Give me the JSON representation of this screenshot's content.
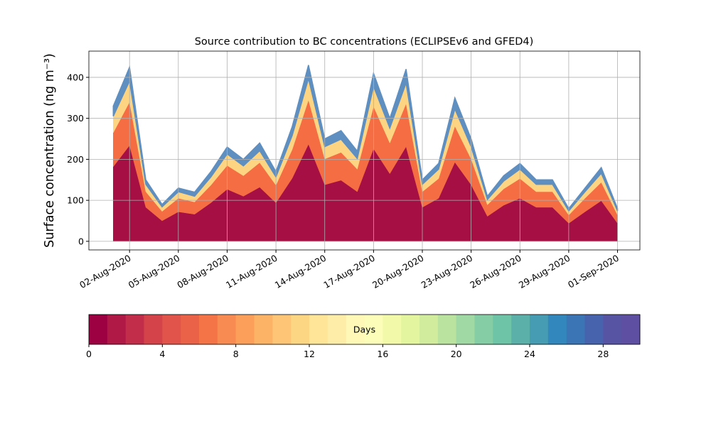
{
  "chart_data": {
    "type": "stacked_area",
    "title": "Source contribution to BC concentrations (ECLIPSEv6 and GFED4)",
    "y_label": "Surface concentration (ng m⁻³)",
    "x": [
      "2020-08-01",
      "2020-08-02",
      "2020-08-03",
      "2020-08-04",
      "2020-08-05",
      "2020-08-06",
      "2020-08-07",
      "2020-08-08",
      "2020-08-09",
      "2020-08-10",
      "2020-08-11",
      "2020-08-12",
      "2020-08-13",
      "2020-08-14",
      "2020-08-15",
      "2020-08-16",
      "2020-08-17",
      "2020-08-18",
      "2020-08-19",
      "2020-08-20",
      "2020-08-21",
      "2020-08-22",
      "2020-08-23",
      "2020-08-24",
      "2020-08-25",
      "2020-08-26",
      "2020-08-27",
      "2020-08-28",
      "2020-08-29",
      "2020-08-30",
      "2020-08-31",
      "2020-09-01"
    ],
    "series": [
      {
        "color": "#a50f43",
        "values": [
          182,
          234,
          83,
          50,
          72,
          66,
          94,
          127,
          110,
          132,
          94,
          154,
          237,
          138,
          149,
          121,
          226,
          165,
          231,
          83,
          105,
          193,
          138,
          61,
          88,
          105,
          83,
          83,
          44,
          72,
          99,
          44
        ]
      },
      {
        "color": "#f46d43",
        "values": [
          83,
          106,
          38,
          23,
          33,
          30,
          43,
          58,
          50,
          60,
          43,
          70,
          108,
          63,
          68,
          55,
          103,
          75,
          105,
          38,
          48,
          88,
          63,
          28,
          40,
          48,
          38,
          38,
          20,
          33,
          45,
          20
        ]
      },
      {
        "color": "#fdd582",
        "values": [
          40,
          51,
          18,
          11,
          16,
          14,
          20,
          28,
          24,
          29,
          20,
          34,
          52,
          30,
          32,
          26,
          49,
          36,
          50,
          18,
          23,
          42,
          30,
          13,
          19,
          23,
          18,
          18,
          10,
          16,
          22,
          10
        ]
      },
      {
        "color": "#5e8fc0",
        "values": [
          25,
          34,
          11,
          6,
          9,
          10,
          13,
          17,
          16,
          19,
          13,
          22,
          33,
          19,
          21,
          18,
          32,
          24,
          34,
          11,
          14,
          27,
          19,
          8,
          13,
          14,
          11,
          11,
          6,
          9,
          14,
          6
        ]
      }
    ],
    "xlim": [
      "2020-07-30T12:00",
      "2020-09-02T09:00"
    ],
    "xticks": [
      {
        "value": "2020-08-02",
        "label": "02-Aug-2020"
      },
      {
        "value": "2020-08-05",
        "label": "05-Aug-2020"
      },
      {
        "value": "2020-08-08",
        "label": "08-Aug-2020"
      },
      {
        "value": "2020-08-11",
        "label": "11-Aug-2020"
      },
      {
        "value": "2020-08-14",
        "label": "14-Aug-2020"
      },
      {
        "value": "2020-08-17",
        "label": "17-Aug-2020"
      },
      {
        "value": "2020-08-20",
        "label": "20-Aug-2020"
      },
      {
        "value": "2020-08-23",
        "label": "23-Aug-2020"
      },
      {
        "value": "2020-08-26",
        "label": "26-Aug-2020"
      },
      {
        "value": "2020-08-29",
        "label": "29-Aug-2020"
      },
      {
        "value": "2020-09-01",
        "label": "01-Sep-2020"
      }
    ],
    "ylim": [
      -21,
      464
    ],
    "yticks": [
      0,
      100,
      200,
      300,
      400
    ],
    "grid": true,
    "colorbar": {
      "label": "Days",
      "lim": [
        0,
        30
      ],
      "ticks": [
        0,
        4,
        8,
        12,
        16,
        20,
        24,
        28
      ],
      "colors": [
        "#9e0142",
        "#b01846",
        "#c22e4a",
        "#d4424a",
        "#e0544b",
        "#ea6248",
        "#f47447",
        "#f88b52",
        "#fb9f5b",
        "#fdb365",
        "#fdc575",
        "#fdd684",
        "#fee597",
        "#feeda8",
        "#fff8b6",
        "#fbfdb9",
        "#f2faaa",
        "#e4f59f",
        "#d1ec9d",
        "#b9e39f",
        "#a0d9a3",
        "#85cda5",
        "#6ec4a6",
        "#5bb1a9",
        "#469cb2",
        "#3288bd",
        "#3b75b6",
        "#4763ae",
        "#5754a4",
        "#5e4fa2"
      ]
    }
  }
}
